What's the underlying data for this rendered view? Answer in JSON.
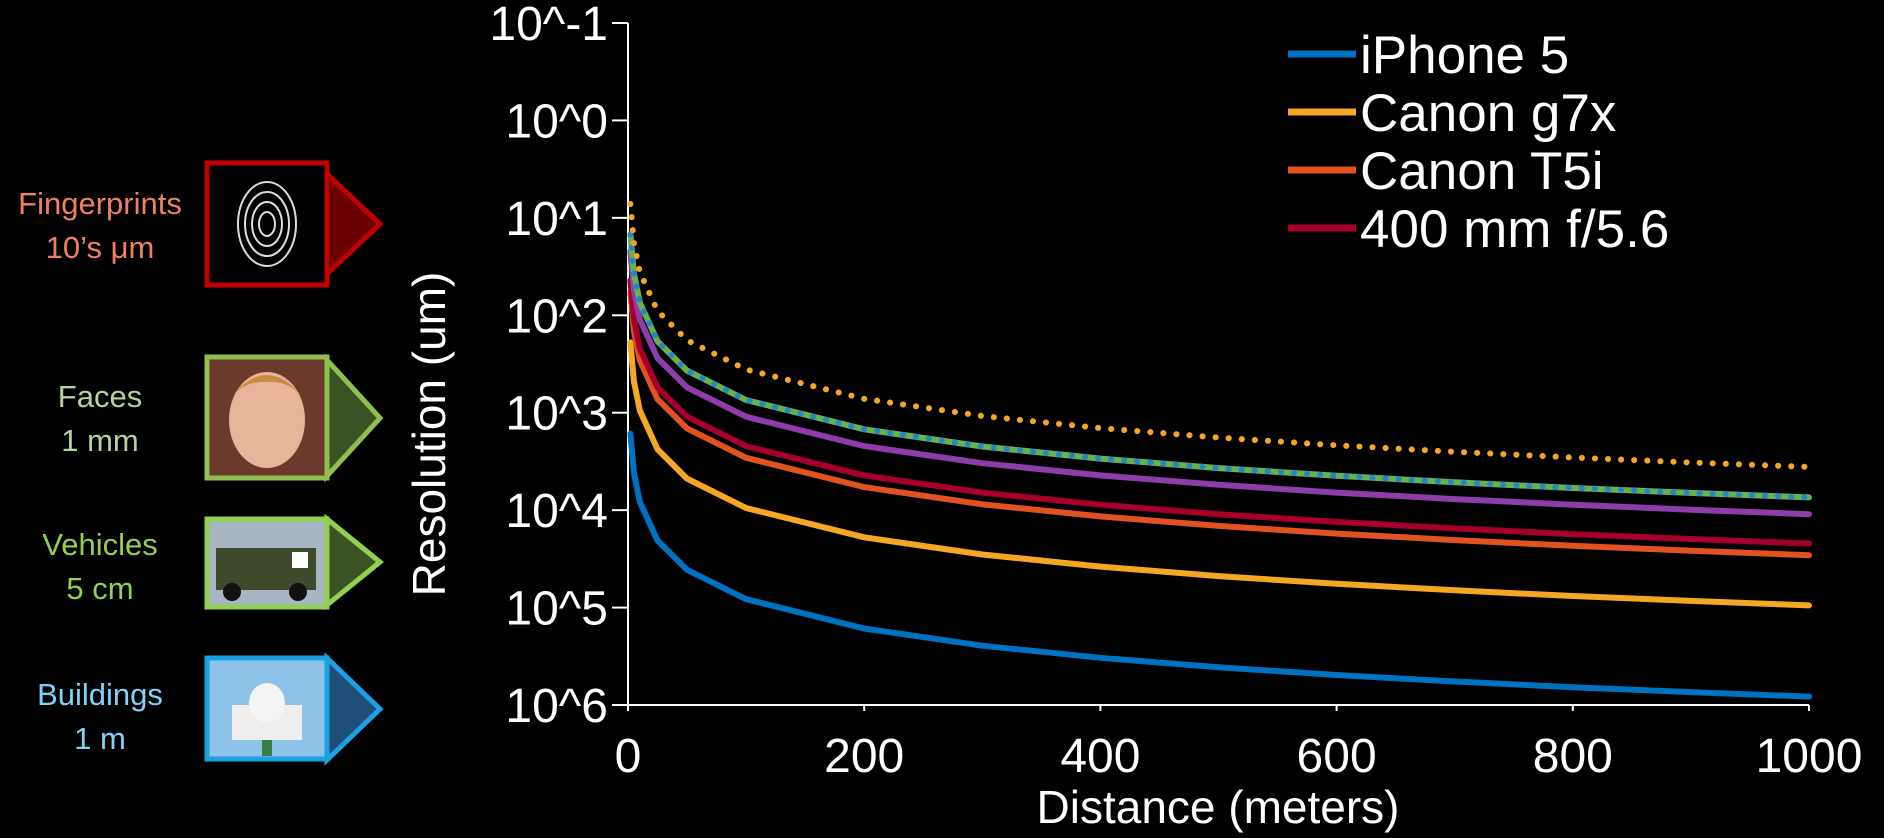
{
  "chart_data": {
    "type": "line",
    "y_label": "Resolution (um)",
    "x_label": "Distance (meters)",
    "log_y": true,
    "y_inverted": true,
    "x": [
      2,
      5,
      10,
      25,
      50,
      100,
      200,
      300,
      400,
      500,
      600,
      700,
      800,
      900,
      1000
    ],
    "xlim": [
      0,
      1000
    ],
    "xticks": [
      0,
      200,
      400,
      600,
      800,
      1000
    ],
    "ylim": [
      0.1,
      1000000
    ],
    "yticks": [
      {
        "value": 0.1,
        "label": "10^-1"
      },
      {
        "value": 1,
        "label": "10^0"
      },
      {
        "value": 10,
        "label": "10^1"
      },
      {
        "value": 100,
        "label": "10^2"
      },
      {
        "value": 1000,
        "label": "10^3"
      },
      {
        "value": 10000,
        "label": "10^4"
      },
      {
        "value": 100000,
        "label": "10^5"
      },
      {
        "value": 1000000,
        "label": "10^6"
      }
    ],
    "series": [
      {
        "name": "iPhone 5",
        "color": "#0070c0",
        "values": [
          1640,
          4100,
          8200,
          20500,
          41000,
          82000,
          164000,
          246000,
          328000,
          410000,
          492000,
          574000,
          656000,
          738000,
          820000
        ]
      },
      {
        "name": "Canon g7x",
        "color": "#f5a623",
        "values": [
          190,
          475,
          950,
          2375,
          4750,
          9500,
          19000,
          28500,
          38000,
          47500,
          57000,
          66500,
          76000,
          85500,
          95000
        ]
      },
      {
        "name": "Canon T5i",
        "color": "#e0531f",
        "values": [
          58,
          145,
          290,
          725,
          1450,
          2900,
          5800,
          8700,
          11600,
          14500,
          17400,
          20300,
          23200,
          26100,
          29000
        ]
      },
      {
        "name": "400 mm f/5.6",
        "color": "#a5002a",
        "values": [
          44,
          110,
          220,
          550,
          1100,
          2200,
          4400,
          6600,
          8800,
          11000,
          13200,
          15400,
          17600,
          19800,
          22000
        ]
      },
      {
        "color": "#8e3ca8",
        "values": [
          22,
          55,
          110,
          275,
          550,
          1100,
          2200,
          3300,
          4400,
          5500,
          6600,
          7700,
          8800,
          9900,
          11000
        ]
      },
      {
        "color": "#6ab04c",
        "values": [
          14.8,
          37,
          74,
          185,
          370,
          740,
          1480,
          2220,
          2960,
          3700,
          4440,
          5180,
          5920,
          6660,
          7400
        ]
      },
      {
        "color": "#1e88c8",
        "dash": "dotted",
        "values": [
          14.8,
          37,
          74,
          185,
          370,
          740,
          1480,
          2220,
          2960,
          3700,
          4440,
          5180,
          5920,
          6660,
          7400
        ]
      },
      {
        "color": "#f5a623",
        "dash": "dotted",
        "values": [
          7.2,
          18,
          36,
          90,
          180,
          360,
          720,
          1080,
          1440,
          1800,
          2160,
          2520,
          2880,
          3240,
          3600
        ]
      }
    ],
    "annotations": [
      {
        "label": "Fingerprints",
        "detail": "10’s μm"
      },
      {
        "label": "Faces",
        "detail": "1 mm"
      },
      {
        "label": "Vehicles",
        "detail": "5 cm"
      },
      {
        "label": "Buildings",
        "detail": "1 m"
      }
    ]
  }
}
